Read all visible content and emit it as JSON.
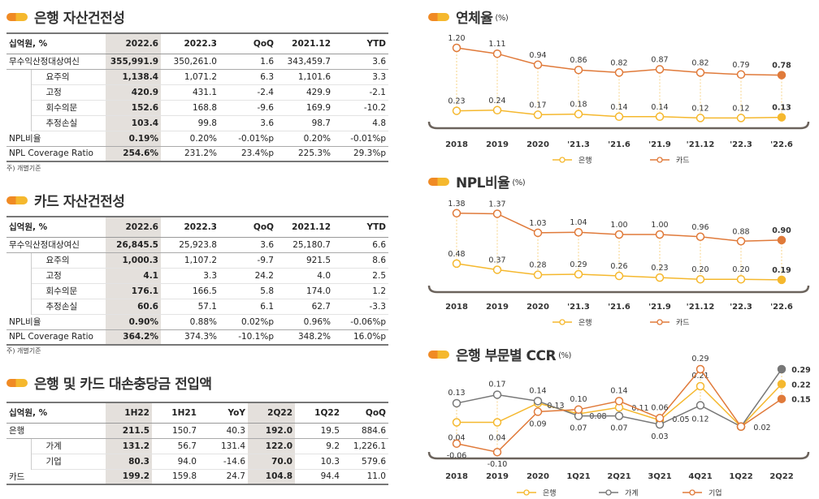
{
  "bank_asset": {
    "title": "은행 자산건전성",
    "headers": [
      "십억원, %",
      "2022.6",
      "2022.3",
      "QoQ",
      "2021.12",
      "YTD"
    ],
    "rows": [
      {
        "type": "main",
        "cells": [
          "무수익산정대상여신",
          "355,991.9",
          "350,261.0",
          "1.6",
          "343,459.7",
          "3.6"
        ]
      },
      {
        "type": "sub",
        "cells": [
          "요주의",
          "1,138.4",
          "1,071.2",
          "6.3",
          "1,101.6",
          "3.3"
        ]
      },
      {
        "type": "sub",
        "cells": [
          "고정",
          "420.9",
          "431.1",
          "-2.4",
          "429.9",
          "-2.1"
        ]
      },
      {
        "type": "sub",
        "cells": [
          "회수의문",
          "152.6",
          "168.8",
          "-9.6",
          "169.9",
          "-10.2"
        ]
      },
      {
        "type": "sub",
        "cells": [
          "추정손실",
          "103.4",
          "99.8",
          "3.6",
          "98.7",
          "4.8"
        ]
      },
      {
        "type": "main",
        "cells": [
          "NPL비율",
          "0.19%",
          "0.20%",
          "-0.01%p",
          "0.20%",
          "-0.01%p"
        ]
      },
      {
        "type": "last",
        "cells": [
          "NPL Coverage Ratio",
          "254.6%",
          "231.2%",
          "23.4%p",
          "225.3%",
          "29.3%p"
        ]
      }
    ],
    "note": "주) 개별기준"
  },
  "card_asset": {
    "title": "카드 자산건전성",
    "headers": [
      "십억원, %",
      "2022.6",
      "2022.3",
      "QoQ",
      "2021.12",
      "YTD"
    ],
    "rows": [
      {
        "type": "main",
        "cells": [
          "무수익산정대상여신",
          "26,845.5",
          "25,923.8",
          "3.6",
          "25,180.7",
          "6.6"
        ]
      },
      {
        "type": "sub",
        "cells": [
          "요주의",
          "1,000.3",
          "1,107.2",
          "-9.7",
          "921.5",
          "8.6"
        ]
      },
      {
        "type": "sub",
        "cells": [
          "고정",
          "4.1",
          "3.3",
          "24.2",
          "4.0",
          "2.5"
        ]
      },
      {
        "type": "sub",
        "cells": [
          "회수의문",
          "176.1",
          "166.5",
          "5.8",
          "174.0",
          "1.2"
        ]
      },
      {
        "type": "sub",
        "cells": [
          "추정손실",
          "60.6",
          "57.1",
          "6.1",
          "62.7",
          "-3.3"
        ]
      },
      {
        "type": "main",
        "cells": [
          "NPL비율",
          "0.90%",
          "0.88%",
          "0.02%p",
          "0.96%",
          "-0.06%p"
        ]
      },
      {
        "type": "last",
        "cells": [
          "NPL Coverage Ratio",
          "364.2%",
          "374.3%",
          "-10.1%p",
          "348.2%",
          "16.0%p"
        ]
      }
    ],
    "note": "주) 개별기준"
  },
  "provision": {
    "title": "은행 및 카드 대손충당금 전입액",
    "headers": [
      "십억원, %",
      "1H22",
      "1H21",
      "YoY",
      "2Q22",
      "1Q22",
      "QoQ"
    ],
    "rows": [
      {
        "type": "main",
        "cells": [
          "은행",
          "211.5",
          "150.7",
          "40.3",
          "192.0",
          "19.5",
          "884.6"
        ]
      },
      {
        "type": "sub",
        "cells": [
          "가계",
          "131.2",
          "56.7",
          "131.4",
          "122.0",
          "9.2",
          "1,226.1"
        ]
      },
      {
        "type": "sub",
        "cells": [
          "기업",
          "80.3",
          "94.0",
          "-14.6",
          "70.0",
          "10.3",
          "579.6"
        ]
      },
      {
        "type": "last",
        "cells": [
          "카드",
          "199.2",
          "159.8",
          "24.7",
          "104.8",
          "94.4",
          "11.0"
        ]
      }
    ]
  },
  "chart_data": [
    {
      "type": "line",
      "title": "연체율",
      "unit": "(%)",
      "categories": [
        "2018",
        "2019",
        "2020",
        "'21.3",
        "'21.6",
        "'21.9",
        "'21.12",
        "'22.3",
        "'22.6"
      ],
      "series": [
        {
          "name": "은행",
          "color": "#f5b82e",
          "values": [
            0.23,
            0.24,
            0.17,
            0.18,
            0.14,
            0.14,
            0.12,
            0.12,
            0.13
          ]
        },
        {
          "name": "카드",
          "color": "#e07a3a",
          "values": [
            1.2,
            1.11,
            0.94,
            0.86,
            0.82,
            0.87,
            0.82,
            0.79,
            0.78
          ]
        }
      ],
      "legend": "bottom"
    },
    {
      "type": "line",
      "title": "NPL비율",
      "unit": "(%)",
      "categories": [
        "2018",
        "2019",
        "2020",
        "'21.3",
        "'21.6",
        "'21.9",
        "'21.12",
        "'22.3",
        "'22.6"
      ],
      "series": [
        {
          "name": "은행",
          "color": "#f5b82e",
          "values": [
            0.48,
            0.37,
            0.28,
            0.29,
            0.26,
            0.23,
            0.2,
            0.2,
            0.19
          ]
        },
        {
          "name": "카드",
          "color": "#e07a3a",
          "values": [
            1.38,
            1.37,
            1.03,
            1.04,
            1.0,
            1.0,
            0.96,
            0.88,
            0.9
          ]
        }
      ],
      "legend": "bottom"
    },
    {
      "type": "line",
      "title": "은행 부문별 CCR",
      "unit": "(%)",
      "categories": [
        "2018",
        "2019",
        "2020",
        "1Q21",
        "2Q21",
        "3Q21",
        "4Q21",
        "1Q22",
        "2Q22"
      ],
      "series": [
        {
          "name": "은행",
          "color": "#f5b82e",
          "values": [
            0.04,
            0.04,
            0.13,
            0.08,
            0.11,
            0.05,
            0.21,
            0.02,
            0.22
          ]
        },
        {
          "name": "가계",
          "color": "#777777",
          "values": [
            0.13,
            0.17,
            0.14,
            0.07,
            0.07,
            0.03,
            0.12,
            0.02,
            0.29
          ]
        },
        {
          "name": "기업",
          "color": "#e07a3a",
          "values": [
            -0.06,
            -0.1,
            0.09,
            0.1,
            0.14,
            0.06,
            0.29,
            0.02,
            0.15
          ]
        }
      ],
      "legend": "bottom"
    }
  ]
}
